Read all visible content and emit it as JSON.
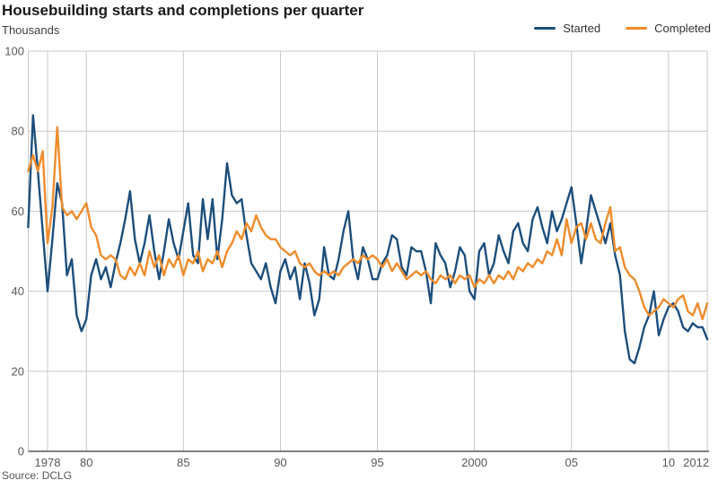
{
  "header": {
    "title": "Housebuilding starts and completions per quarter",
    "subtitle": "Thousands"
  },
  "source": "Source: DCLG",
  "colors": {
    "started": "#1d4f7c",
    "completed": "#ef8c2c",
    "grid": "#c9c9c9",
    "axis": "#7f7f7f",
    "tick_text": "#595959"
  },
  "chart_data": {
    "type": "line",
    "title": "Housebuilding starts and completions per quarter",
    "ylabel": "Thousands",
    "xlabel": "",
    "x_unit": "quarter",
    "x_start_year": 1977,
    "x_step_years": 0.25,
    "ylim": [
      0,
      100
    ],
    "grid": true,
    "legend_position": "top-right",
    "y_ticks": [
      0,
      20,
      40,
      60,
      80,
      100
    ],
    "x_ticks": [
      {
        "label": "1978",
        "year": 1978
      },
      {
        "label": "80",
        "year": 1980
      },
      {
        "label": "85",
        "year": 1985
      },
      {
        "label": "90",
        "year": 1990
      },
      {
        "label": "95",
        "year": 1995
      },
      {
        "label": "2000",
        "year": 2000
      },
      {
        "label": "05",
        "year": 2005
      },
      {
        "label": "10",
        "year": 2010
      },
      {
        "label": "2012",
        "year": 2012
      }
    ],
    "series": [
      {
        "name": "Started",
        "color": "#1d4f7c",
        "values": [
          56,
          84,
          70,
          55,
          40,
          53,
          67,
          62,
          44,
          48,
          34,
          30,
          33,
          44,
          48,
          43,
          46,
          41,
          47,
          52,
          58,
          65,
          53,
          47,
          52,
          59,
          50,
          43,
          50,
          58,
          52,
          48,
          55,
          62,
          49,
          47,
          63,
          53,
          63,
          48,
          58,
          72,
          64,
          62,
          63,
          54,
          47,
          45,
          43,
          47,
          41,
          37,
          45,
          48,
          43,
          46,
          38,
          47,
          42,
          34,
          38,
          51,
          44,
          43,
          48,
          55,
          60,
          48,
          43,
          51,
          48,
          43,
          43,
          47,
          49,
          54,
          53,
          46,
          44,
          51,
          50,
          50,
          45,
          37,
          52,
          49,
          47,
          41,
          45,
          51,
          49,
          40,
          38,
          50,
          52,
          44,
          47,
          54,
          50,
          47,
          55,
          57,
          52,
          50,
          58,
          61,
          56,
          52,
          60,
          55,
          58,
          62,
          66,
          57,
          47,
          55,
          64,
          60,
          56,
          52,
          57,
          49,
          44,
          30,
          23,
          22,
          26,
          31,
          34,
          40,
          29,
          33,
          36,
          37,
          35,
          31,
          30,
          32,
          31,
          31,
          28
        ]
      },
      {
        "name": "Completed",
        "color": "#ef8c2c",
        "values": [
          70,
          74,
          70,
          75,
          52,
          61,
          81,
          61,
          59,
          60,
          58,
          60,
          62,
          56,
          54,
          49,
          48,
          49,
          48,
          44,
          43,
          46,
          44,
          47,
          44,
          50,
          46,
          49,
          44,
          48,
          46,
          49,
          44,
          48,
          47,
          50,
          45,
          48,
          47,
          50,
          46,
          50,
          52,
          55,
          53,
          57,
          55,
          59,
          56,
          54,
          53,
          53,
          51,
          50,
          49,
          50,
          47,
          46,
          47,
          45,
          44,
          45,
          44,
          45,
          44,
          46,
          47,
          48,
          47,
          49,
          48,
          49,
          48,
          46,
          48,
          45,
          47,
          45,
          43,
          44,
          45,
          44,
          45,
          43,
          42,
          44,
          43,
          44,
          42,
          44,
          43,
          44,
          41,
          43,
          42,
          44,
          42,
          44,
          43,
          45,
          43,
          46,
          45,
          47,
          46,
          48,
          47,
          50,
          49,
          53,
          49,
          58,
          52,
          56,
          57,
          53,
          57,
          53,
          52,
          57,
          61,
          50,
          51,
          46,
          44,
          43,
          40,
          36,
          34,
          35,
          36,
          38,
          37,
          36,
          38,
          39,
          35,
          34,
          37,
          33,
          37
        ]
      }
    ]
  }
}
